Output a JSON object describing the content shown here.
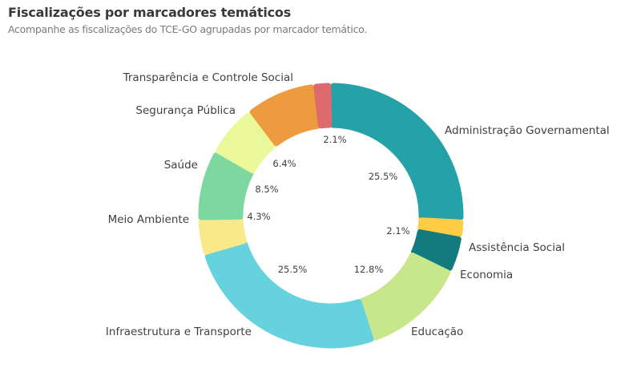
{
  "header": {
    "title": "Fiscalizações por marcadores temáticos",
    "subtitle": "Acompanhe as fiscalizações do TCE-GO agrupadas por marcador temático."
  },
  "chart_data": {
    "type": "pie",
    "title": "Fiscalizações por marcadores temáticos",
    "subtitle": "Acompanhe as fiscalizações do TCE-GO agrupadas por marcador temático.",
    "donut": true,
    "legend": "none",
    "slices": [
      {
        "label": "Administração Governamental",
        "value": 25.5,
        "value_label": "25.5%",
        "color": "#25a1a8"
      },
      {
        "label": "Assistência Social",
        "value": 2.1,
        "value_label": "2.1%",
        "color": "#ffcd45"
      },
      {
        "label": "Economia",
        "value": 4.3,
        "value_label": "",
        "color": "#117b80"
      },
      {
        "label": "Educação",
        "value": 12.8,
        "value_label": "12.8%",
        "color": "#c8e68b"
      },
      {
        "label": "Infraestrutura e Transporte",
        "value": 25.5,
        "value_label": "25.5%",
        "color": "#66d2de"
      },
      {
        "label": "Meio Ambiente",
        "value": 4.3,
        "value_label": "4.3%",
        "color": "#fae98a"
      },
      {
        "label": "Saúde",
        "value": 8.5,
        "value_label": "8.5%",
        "color": "#7dd8a0"
      },
      {
        "label": "Segurança Pública",
        "value": 6.4,
        "value_label": "6.4%",
        "color": "#eaf89a"
      },
      {
        "label": "Transparência e Controle Social",
        "value": 8.5,
        "value_label": "",
        "color": "#ee9b3f"
      },
      {
        "label": "",
        "value": 2.1,
        "value_label": "2.1%",
        "color": "#dd6a6c"
      }
    ]
  }
}
